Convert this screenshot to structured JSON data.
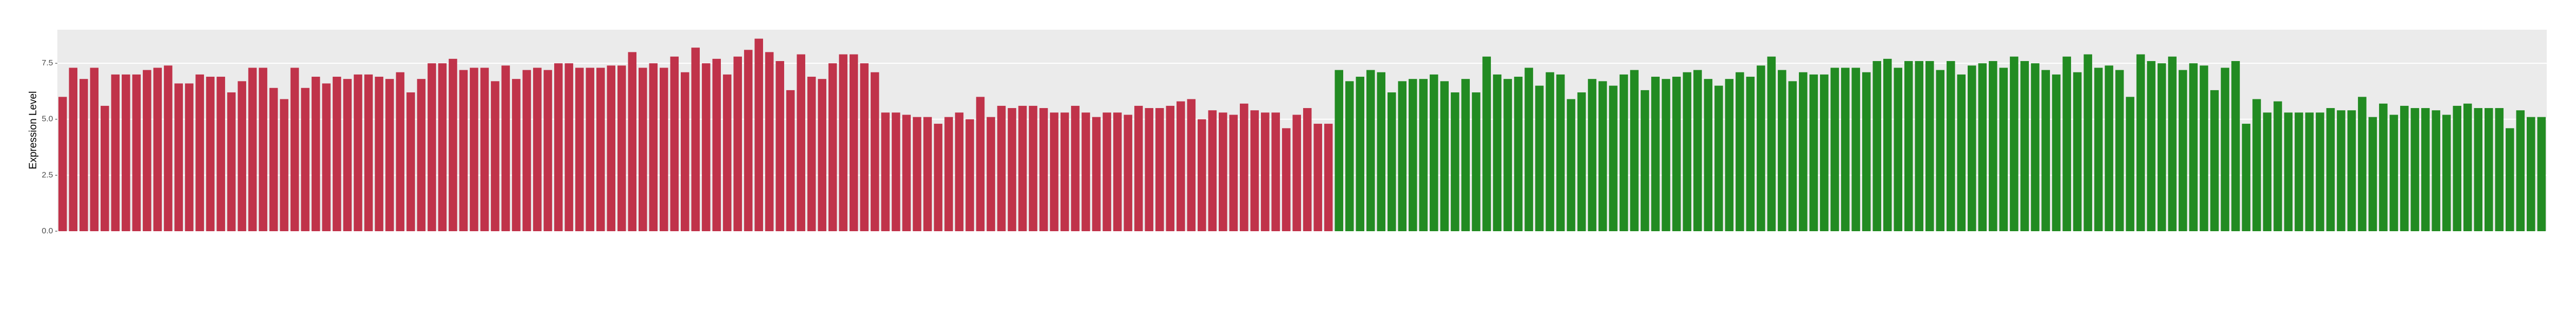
{
  "chart_data": {
    "type": "bar",
    "y_label": "Expression Level",
    "ylim": [
      0,
      9.0
    ],
    "yticks": [
      {
        "value": 0,
        "label": "0.0"
      },
      {
        "value": 2.5,
        "label": "2.5"
      },
      {
        "value": 5,
        "label": "5.0"
      },
      {
        "value": 7.5,
        "label": "7.5"
      }
    ],
    "grid": true,
    "categories": [
      null,
      null,
      null,
      null,
      null,
      null,
      null,
      null,
      null,
      null,
      null,
      null,
      null,
      null,
      null,
      null,
      null,
      null,
      null,
      null,
      null,
      null,
      null,
      null,
      null,
      null,
      null,
      null,
      null,
      null,
      null,
      null,
      null,
      null,
      null,
      null,
      null,
      null,
      null,
      null,
      null,
      null,
      null,
      null,
      null,
      null,
      null,
      null,
      null,
      null,
      null,
      null,
      null,
      null,
      null,
      null,
      null,
      null,
      null,
      null,
      null,
      null,
      null,
      null,
      null,
      null,
      null,
      null,
      null,
      null,
      null,
      null,
      null,
      null,
      null,
      null,
      null,
      null,
      null,
      null,
      null,
      null,
      null,
      null,
      null,
      null,
      null,
      null,
      null,
      null,
      null,
      null,
      null,
      null,
      null,
      null,
      null,
      null,
      null,
      null,
      null,
      null,
      null,
      null,
      null,
      null,
      null,
      null,
      null,
      null,
      null,
      null,
      null,
      null,
      null,
      null,
      null,
      null,
      null,
      null,
      null,
      null,
      null,
      null,
      null,
      null,
      null,
      null,
      null,
      null,
      null,
      null,
      null,
      null,
      null,
      null,
      null,
      null,
      null,
      null,
      null,
      null,
      null,
      null,
      null,
      null,
      null,
      null,
      null,
      null,
      null,
      null,
      null,
      null,
      null,
      null,
      null,
      null,
      null,
      null,
      null,
      null,
      null,
      null,
      null,
      null,
      null,
      null,
      null,
      null,
      null,
      null,
      null,
      null,
      null,
      null,
      null,
      null,
      null,
      null,
      null,
      null,
      null,
      null,
      null,
      null,
      null,
      null,
      null,
      null,
      null,
      null,
      null,
      null,
      null,
      null,
      null,
      null,
      null,
      null,
      null,
      null,
      null,
      null,
      null,
      null,
      null,
      null,
      null,
      null,
      null,
      null,
      null,
      null,
      null,
      null,
      null,
      null,
      null,
      null,
      null,
      null,
      null,
      null,
      null,
      null,
      null,
      null,
      null,
      null,
      null,
      null,
      null,
      null,
      null,
      null
    ],
    "values": [
      6.0,
      7.3,
      6.8,
      7.3,
      5.6,
      7.0,
      7.0,
      7.0,
      7.2,
      7.3,
      7.4,
      6.6,
      6.6,
      7.0,
      6.9,
      6.9,
      6.2,
      6.7,
      7.3,
      7.3,
      6.4,
      5.9,
      7.3,
      6.4,
      6.9,
      6.6,
      6.9,
      6.8,
      7.0,
      7.0,
      6.9,
      6.8,
      7.1,
      6.2,
      6.8,
      7.5,
      7.5,
      7.7,
      7.2,
      7.3,
      7.3,
      6.7,
      7.4,
      6.8,
      7.2,
      7.3,
      7.2,
      7.5,
      7.5,
      7.3,
      7.3,
      7.3,
      7.4,
      7.4,
      8.0,
      7.3,
      7.5,
      7.3,
      7.8,
      7.1,
      8.2,
      7.5,
      7.7,
      7.0,
      7.8,
      8.1,
      8.6,
      8.0,
      7.6,
      6.3,
      7.9,
      6.9,
      6.8,
      7.5,
      7.9,
      7.9,
      7.5,
      7.1,
      5.3,
      5.3,
      5.2,
      5.1,
      5.1,
      4.8,
      5.1,
      5.3,
      5.0,
      6.0,
      5.1,
      5.6,
      5.5,
      5.6,
      5.6,
      5.5,
      5.3,
      5.3,
      5.6,
      5.3,
      5.1,
      5.3,
      5.3,
      5.2,
      5.6,
      5.5,
      5.5,
      5.6,
      5.8,
      5.9,
      5.0,
      5.4,
      5.3,
      5.2,
      5.7,
      5.4,
      5.3,
      5.3,
      4.6,
      5.2,
      5.5,
      4.8,
      4.8,
      7.2,
      6.7,
      6.9,
      7.2,
      7.1,
      6.2,
      6.7,
      6.8,
      6.8,
      7.0,
      6.7,
      6.2,
      6.8,
      6.2,
      7.8,
      7.0,
      6.8,
      6.9,
      7.3,
      6.5,
      7.1,
      7.0,
      5.9,
      6.2,
      6.8,
      6.7,
      6.5,
      7.0,
      7.2,
      6.3,
      6.9,
      6.8,
      6.9,
      7.1,
      7.2,
      6.8,
      6.5,
      6.8,
      7.1,
      6.9,
      7.4,
      7.8,
      7.2,
      6.7,
      7.1,
      7.0,
      7.0,
      7.3,
      7.3,
      7.3,
      7.1,
      7.6,
      7.7,
      7.3,
      7.6,
      7.6,
      7.6,
      7.2,
      7.6,
      7.0,
      7.4,
      7.5,
      7.6,
      7.3,
      7.8,
      7.6,
      7.5,
      7.2,
      7.0,
      7.8,
      7.1,
      7.9,
      7.3,
      7.4,
      7.2,
      6.0,
      7.9,
      7.6,
      7.5,
      7.8,
      7.2,
      7.5,
      7.4,
      6.3,
      7.3,
      7.6,
      4.8,
      5.9,
      5.3,
      5.8,
      5.3,
      5.3,
      5.3,
      5.3,
      5.5,
      5.4,
      5.4,
      6.0,
      5.1,
      5.7,
      5.2,
      5.6,
      5.5,
      5.5,
      5.4,
      5.2,
      5.6,
      5.7,
      5.5,
      5.5,
      5.5,
      4.6,
      5.4,
      5.1,
      5.1
    ],
    "colors": [
      "#c0334a",
      "#c0334a",
      "#c0334a",
      "#c0334a",
      "#c0334a",
      "#c0334a",
      "#c0334a",
      "#c0334a",
      "#c0334a",
      "#c0334a",
      "#c0334a",
      "#c0334a",
      "#c0334a",
      "#c0334a",
      "#c0334a",
      "#c0334a",
      "#c0334a",
      "#c0334a",
      "#c0334a",
      "#c0334a",
      "#c0334a",
      "#c0334a",
      "#c0334a",
      "#c0334a",
      "#c0334a",
      "#c0334a",
      "#c0334a",
      "#c0334a",
      "#c0334a",
      "#c0334a",
      "#c0334a",
      "#c0334a",
      "#c0334a",
      "#c0334a",
      "#c0334a",
      "#c0334a",
      "#c0334a",
      "#c0334a",
      "#c0334a",
      "#c0334a",
      "#c0334a",
      "#c0334a",
      "#c0334a",
      "#c0334a",
      "#c0334a",
      "#c0334a",
      "#c0334a",
      "#c0334a",
      "#c0334a",
      "#c0334a",
      "#c0334a",
      "#c0334a",
      "#c0334a",
      "#c0334a",
      "#c0334a",
      "#c0334a",
      "#c0334a",
      "#c0334a",
      "#c0334a",
      "#c0334a",
      "#c0334a",
      "#c0334a",
      "#c0334a",
      "#c0334a",
      "#c0334a",
      "#c0334a",
      "#c0334a",
      "#c0334a",
      "#c0334a",
      "#c0334a",
      "#c0334a",
      "#c0334a",
      "#c0334a",
      "#c0334a",
      "#c0334a",
      "#c0334a",
      "#c0334a",
      "#c0334a",
      "#c0334a",
      "#c0334a",
      "#c0334a",
      "#c0334a",
      "#c0334a",
      "#c0334a",
      "#c0334a",
      "#c0334a",
      "#c0334a",
      "#c0334a",
      "#c0334a",
      "#c0334a",
      "#c0334a",
      "#c0334a",
      "#c0334a",
      "#c0334a",
      "#c0334a",
      "#c0334a",
      "#c0334a",
      "#c0334a",
      "#c0334a",
      "#c0334a",
      "#c0334a",
      "#c0334a",
      "#c0334a",
      "#c0334a",
      "#c0334a",
      "#c0334a",
      "#c0334a",
      "#c0334a",
      "#c0334a",
      "#c0334a",
      "#c0334a",
      "#c0334a",
      "#c0334a",
      "#c0334a",
      "#c0334a",
      "#c0334a",
      "#c0334a",
      "#c0334a",
      "#c0334a",
      "#c0334a",
      "#c0334a",
      "#228b22",
      "#228b22",
      "#228b22",
      "#228b22",
      "#228b22",
      "#228b22",
      "#228b22",
      "#228b22",
      "#228b22",
      "#228b22",
      "#228b22",
      "#228b22",
      "#228b22",
      "#228b22",
      "#228b22",
      "#228b22",
      "#228b22",
      "#228b22",
      "#228b22",
      "#228b22",
      "#228b22",
      "#228b22",
      "#228b22",
      "#228b22",
      "#228b22",
      "#228b22",
      "#228b22",
      "#228b22",
      "#228b22",
      "#228b22",
      "#228b22",
      "#228b22",
      "#228b22",
      "#228b22",
      "#228b22",
      "#228b22",
      "#228b22",
      "#228b22",
      "#228b22",
      "#228b22",
      "#228b22",
      "#228b22",
      "#228b22",
      "#228b22",
      "#228b22",
      "#228b22",
      "#228b22",
      "#228b22",
      "#228b22",
      "#228b22",
      "#228b22",
      "#228b22",
      "#228b22",
      "#228b22",
      "#228b22",
      "#228b22",
      "#228b22",
      "#228b22",
      "#228b22",
      "#228b22",
      "#228b22",
      "#228b22",
      "#228b22",
      "#228b22",
      "#228b22",
      "#228b22",
      "#228b22",
      "#228b22",
      "#228b22",
      "#228b22",
      "#228b22",
      "#228b22",
      "#228b22",
      "#228b22",
      "#228b22",
      "#228b22",
      "#228b22",
      "#228b22",
      "#228b22",
      "#228b22",
      "#228b22",
      "#228b22",
      "#228b22",
      "#228b22",
      "#228b22",
      "#228b22",
      "#228b22",
      "#228b22",
      "#228b22",
      "#228b22",
      "#228b22",
      "#228b22",
      "#228b22",
      "#228b22",
      "#228b22",
      "#228b22",
      "#228b22",
      "#228b22",
      "#228b22",
      "#228b22",
      "#228b22",
      "#228b22",
      "#228b22",
      "#228b22",
      "#228b22",
      "#228b22",
      "#228b22",
      "#228b22",
      "#228b22",
      "#228b22",
      "#228b22",
      "#228b22",
      "#228b22",
      "#228b22",
      "#228b22"
    ]
  }
}
